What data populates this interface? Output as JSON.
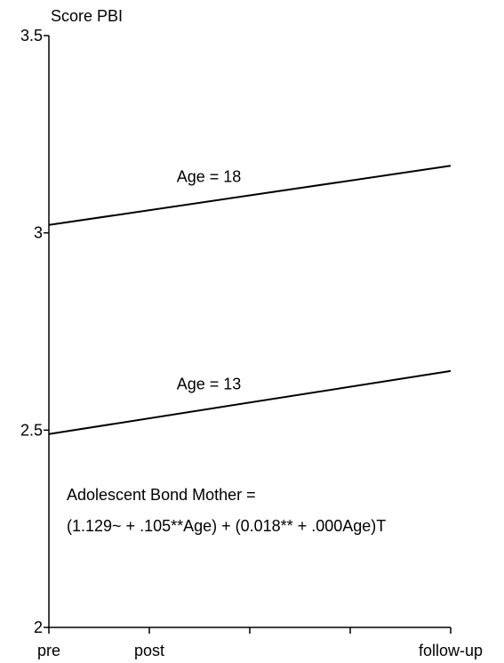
{
  "chart_data": {
    "type": "line",
    "y_label": "Score PBI",
    "xlim": [
      0,
      4
    ],
    "xticks": [
      {
        "value": 0,
        "label": "pre"
      },
      {
        "value": 1,
        "label": "post"
      },
      {
        "value": 2,
        "label": null
      },
      {
        "value": 3,
        "label": null
      },
      {
        "value": 4,
        "label": "follow-up"
      }
    ],
    "ylim": [
      2,
      3.5
    ],
    "yticks": [
      2,
      2.5,
      3,
      3.5
    ],
    "series": [
      {
        "name": "Age = 18",
        "color": "#000000",
        "x": [
          0,
          4
        ],
        "values": [
          3.02,
          3.17
        ]
      },
      {
        "name": "Age = 13",
        "color": "#000000",
        "x": [
          0,
          4
        ],
        "values": [
          2.49,
          2.65
        ]
      }
    ],
    "annotation": [
      "Adolescent Bond Mother =",
      "(1.129~ + .105**Age) + (0.018** + .000Age)T"
    ]
  }
}
